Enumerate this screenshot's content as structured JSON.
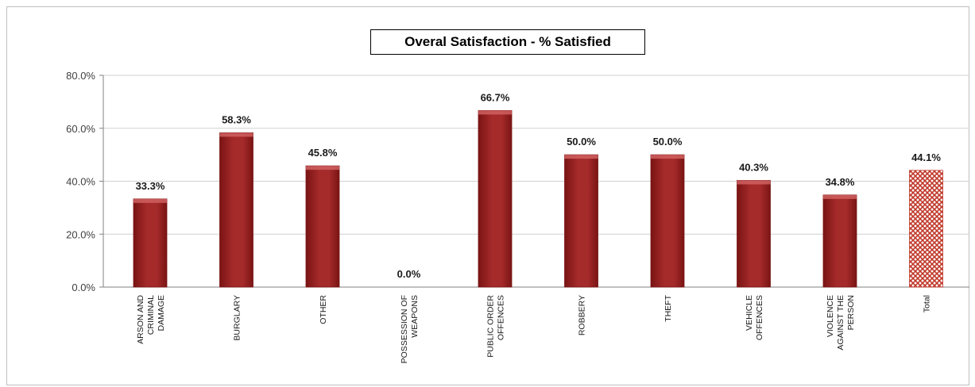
{
  "chart_data": {
    "type": "bar",
    "title": "Overal Satisfaction - % Satisfied",
    "xlabel": "",
    "ylabel": "",
    "ylim": [
      0,
      80
    ],
    "yticks": [
      "0.0%",
      "20.0%",
      "40.0%",
      "60.0%",
      "80.0%"
    ],
    "ytick_values": [
      0,
      20,
      40,
      60,
      80
    ],
    "grid": true,
    "legend": "none",
    "categories": [
      "ARSON AND CRIMINAL DAMAGE",
      "BURGLARY",
      "OTHER",
      "POSSESSION OF WEAPONS",
      "PUBLIC ORDER OFFENCES",
      "ROBBERY",
      "THEFT",
      "VEHICLE OFFENCES",
      "VIOLENCE AGAINST THE PERSON",
      "Total"
    ],
    "category_lines": [
      [
        "ARSON AND",
        "CRIMINAL",
        "DAMAGE"
      ],
      [
        "BURGLARY"
      ],
      [
        "OTHER"
      ],
      [
        "POSSESSION OF",
        "WEAPONS"
      ],
      [
        "PUBLIC ORDER",
        "OFFENCES"
      ],
      [
        "ROBBERY"
      ],
      [
        "THEFT"
      ],
      [
        "VEHICLE",
        "OFFENCES"
      ],
      [
        "VIOLENCE",
        "AGAINST THE",
        "PERSON"
      ],
      [
        "Total"
      ]
    ],
    "values": [
      33.3,
      58.3,
      45.8,
      0.0,
      66.7,
      50.0,
      50.0,
      40.3,
      34.8,
      44.1
    ],
    "data_labels": [
      "33.3%",
      "58.3%",
      "45.8%",
      "0.0%",
      "66.7%",
      "50.0%",
      "50.0%",
      "40.3%",
      "34.8%",
      "44.1%"
    ],
    "colors": {
      "bar": "#a52a2a",
      "bar_dark": "#7a1414",
      "bar_light": "#d06060",
      "total_pattern_fg": "#c0392b",
      "total_pattern_bg": "#ffffff",
      "grid": "#d0d0d0",
      "axis": "#808080"
    }
  }
}
